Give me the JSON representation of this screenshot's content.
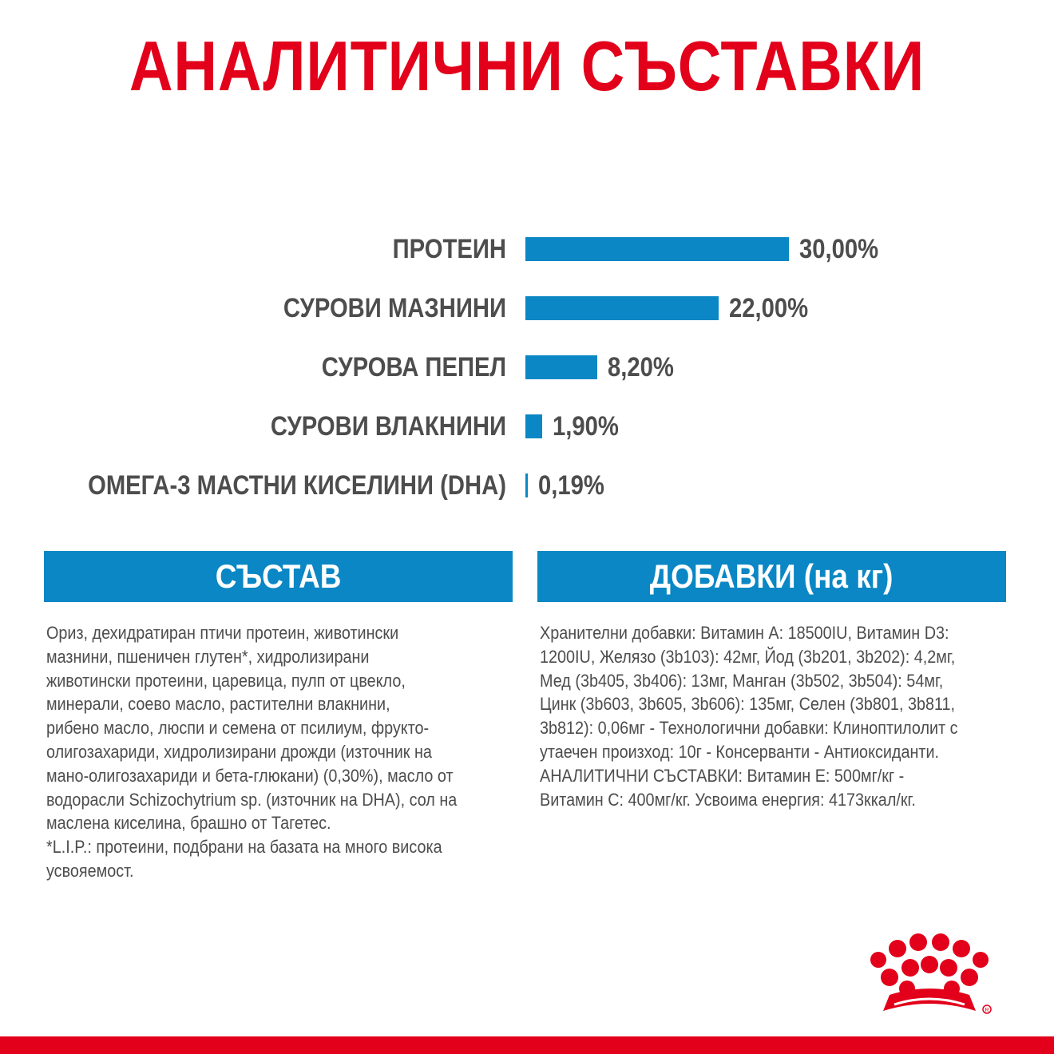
{
  "title": "АНАЛИТИЧНИ СЪСТАВКИ",
  "colors": {
    "brand_red": "#e2001a",
    "bar_blue": "#0a87c4",
    "text_gray": "#4d4d4d"
  },
  "chart_data": {
    "type": "bar",
    "orientation": "horizontal",
    "title": "",
    "xlabel": "",
    "ylabel": "",
    "categories": [
      "ПРОТЕИН",
      "СУРОВИ МАЗНИНИ",
      "СУРОВА ПЕПЕЛ",
      "СУРОВИ ВЛАКНИНИ",
      "ОМЕГА-3 МАСТНИ КИСЕЛИНИ (DHA)"
    ],
    "values": [
      30.0,
      22.0,
      8.2,
      1.9,
      0.19
    ],
    "value_labels": [
      "30,00%",
      "22,00%",
      "8,20%",
      "1,90%",
      "0,19%"
    ],
    "xlim": [
      0,
      30
    ],
    "grid": false
  },
  "composition": {
    "heading": "СЪСТАВ",
    "text": "Ориз, дехидратиран птичи протеин, животински\nмазнини, пшеничен глутен*, хидролизирани\nживотински протеини, царевица, пулп от цвекло,\nминерали, соево масло, растителни влакнини,\nрибено масло, люспи и семена от псилиум, фрукто-\nолигозахариди, хидролизирани дрожди (източник на\nмано-олигозахариди и бета-глюкани) (0,30%), масло от\nводорасли Schizochytrium sp. (източник на DHA), сол на\nмаслена киселина, брашно от Тагетес.\n*L.I.P.: протеини, подбрани на базата на много висока\nусвояемост."
  },
  "additives": {
    "heading": "ДОБАВКИ (на кг)",
    "text": "Хранителни добавки: Витамин А: 18500IU, Витамин D3:\n1200IU, Желязо (3b103): 42мг, Йод (3b201, 3b202): 4,2мг,\nМед (3b405, 3b406): 13мг, Манган (3b502, 3b504): 54мг,\nЦинк (3b603, 3b605, 3b606): 135мг, Селен (3b801, 3b811,\n3b812): 0,06мг - Технологични добавки: Клиноптилолит с\nутаечен произход: 10г - Консерванти - Антиоксиданти.\nАНАЛИТИЧНИ СЪСТАВКИ: Витамин Е: 500мг/кг -\nВитамин С: 400мг/кг. Усвоима енергия: 4173ккал/кг."
  }
}
